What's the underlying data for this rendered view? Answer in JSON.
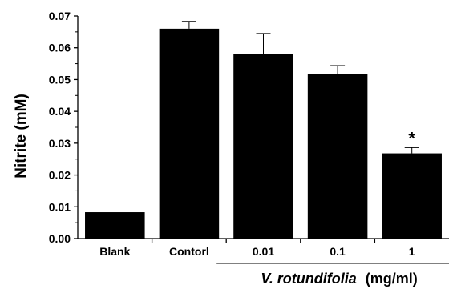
{
  "chart_data": {
    "type": "bar",
    "categories": [
      "Blank",
      "Contorl",
      "0.01",
      "0.1",
      "1"
    ],
    "values": [
      0.0083,
      0.066,
      0.058,
      0.0518,
      0.0268
    ],
    "errors": [
      0.0,
      0.0023,
      0.0065,
      0.0026,
      0.0018
    ],
    "significance": [
      "",
      "",
      "",
      "",
      "*"
    ],
    "ylabel": "Nitrite (mM)",
    "group_label": {
      "name": "V. rotundifolia",
      "unit": "(mg/ml)",
      "covers": [
        "0.01",
        "0.1",
        "1"
      ]
    },
    "ylim": [
      0,
      0.07
    ],
    "yticks": [
      "0.00",
      "0.01",
      "0.02",
      "0.03",
      "0.04",
      "0.05",
      "0.06",
      "0.07"
    ],
    "colors": {
      "bar": "#000000",
      "axis": "#000000"
    },
    "grid": false,
    "legend": "none"
  }
}
